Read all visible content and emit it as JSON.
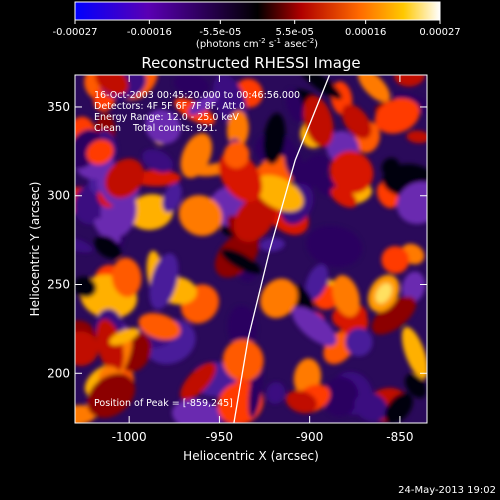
{
  "colorbar": {
    "tick_labels": [
      "-0.00027",
      "-0.00016",
      "-5.5e-05",
      "5.5e-05",
      "0.00016",
      "0.00027"
    ],
    "tick_values": [
      -0.00027,
      -0.00016,
      -5.5e-05,
      5.5e-05,
      0.00016,
      0.00027
    ],
    "range": [
      -0.00027,
      0.00027
    ],
    "unit_prefix": "(photons cm",
    "unit_exp1": "-2",
    "unit_mid": " s",
    "unit_exp2": "-1",
    "unit_mid2": " asec",
    "unit_exp3": "-2",
    "unit_suffix": ")",
    "colors": [
      "#0000ff",
      "#5a00b4",
      "#000000",
      "#b00000",
      "#ff6a00",
      "#ffc800",
      "#ffffff"
    ]
  },
  "chart_data": {
    "type": "heatmap",
    "title": "Reconstructed RHESSI Image",
    "xlabel": "Heliocentric X (arcsec)",
    "ylabel": "Heliocentric Y (arcsec)",
    "xlim": [
      -1030,
      -835
    ],
    "ylim": [
      172,
      368
    ],
    "x_ticks": [
      -1000,
      -950,
      -900,
      -850
    ],
    "x_tick_labels": [
      "-1000",
      "-950",
      "-900",
      "-850"
    ],
    "y_ticks": [
      200,
      250,
      300,
      350
    ],
    "y_tick_labels": [
      "200",
      "250",
      "300",
      "350"
    ],
    "annotations": [
      "16-Oct-2003 00:45:20.000 to 00:46:56.000",
      "Detectors: 4F 5F 6F 7F 8F, Att 0",
      "Energy Range: 12.0 - 25.0 keV",
      "Clean    Total counts: 921."
    ],
    "peak_label": "Position of Peak = [-859,245]",
    "peak": [
      -859,
      245
    ],
    "limb_curve": [
      [
        -942,
        172
      ],
      [
        -934,
        220
      ],
      [
        -922,
        270
      ],
      [
        -908,
        320
      ],
      [
        -889,
        368
      ]
    ]
  },
  "footer": {
    "date": "24-May-2013 19:02"
  }
}
